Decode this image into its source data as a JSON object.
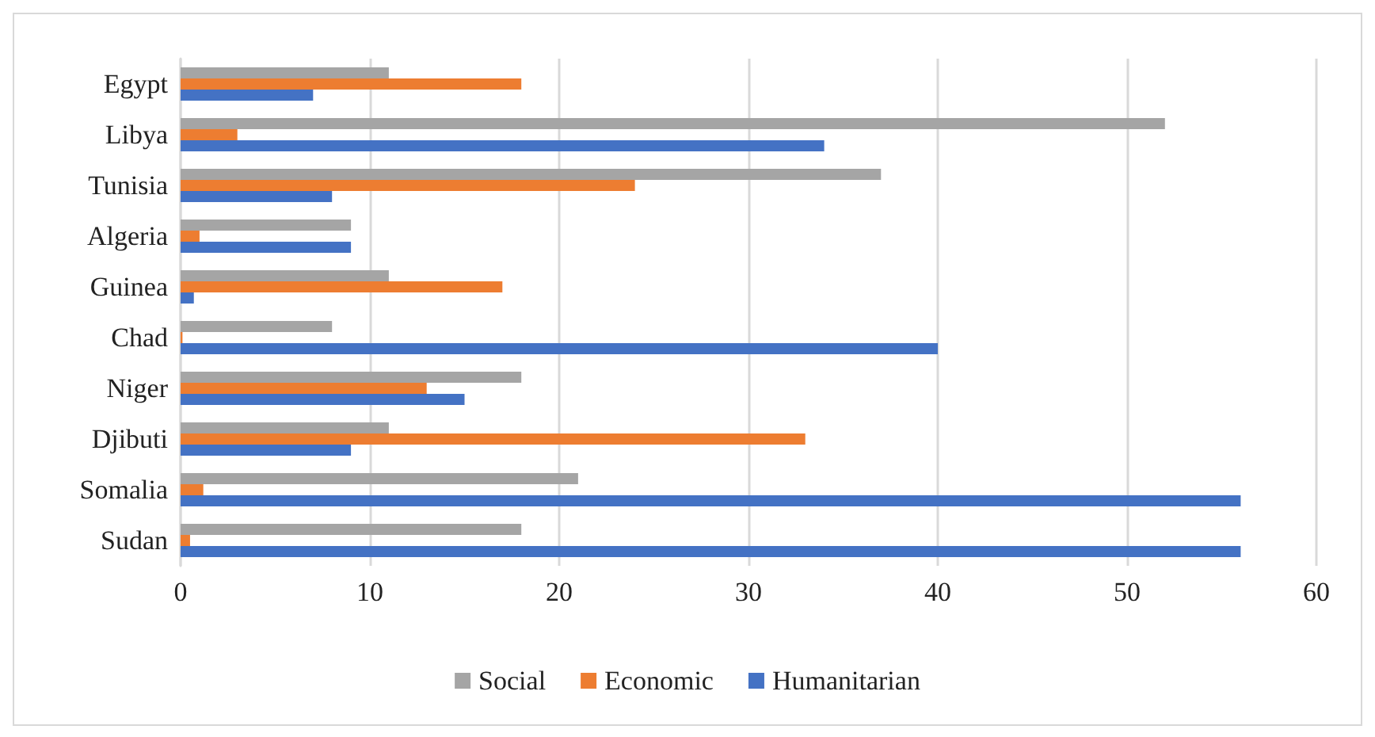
{
  "chart_data": {
    "type": "bar",
    "orientation": "horizontal",
    "categories": [
      "Egypt",
      "Libya",
      "Tunisia",
      "Algeria",
      "Guinea",
      "Chad",
      "Niger",
      "Djibuti",
      "Somalia",
      "Sudan"
    ],
    "series": [
      {
        "name": "Social",
        "color": "#a5a5a5",
        "values": [
          11,
          52,
          37,
          9,
          11,
          8,
          18,
          11,
          21,
          18
        ]
      },
      {
        "name": "Economic",
        "color": "#ed7d31",
        "values": [
          18,
          3,
          24,
          1,
          17,
          0.1,
          13,
          33,
          1.2,
          0.5
        ]
      },
      {
        "name": "Humanitarian",
        "color": "#4472c4",
        "values": [
          7,
          34,
          8,
          9,
          0.7,
          40,
          15,
          9,
          56,
          56
        ]
      }
    ],
    "xlim": [
      0,
      60
    ],
    "xticks": [
      0,
      10,
      20,
      30,
      40,
      50,
      60
    ],
    "grid": "x",
    "legend": "bottom"
  }
}
